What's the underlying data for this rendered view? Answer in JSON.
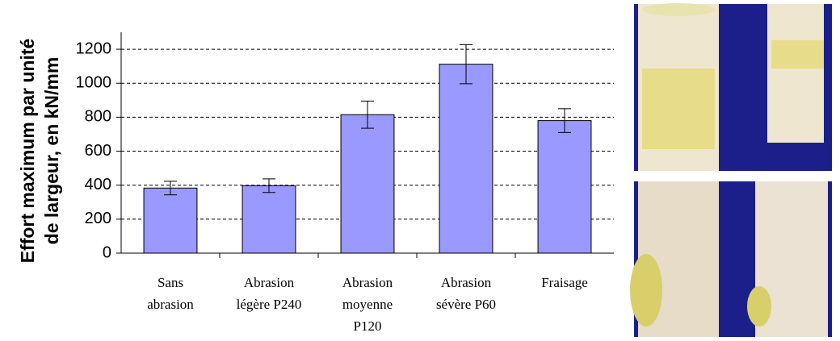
{
  "chart_data": {
    "type": "bar",
    "y_label": [
      "Effort maximum par unité",
      "de largeur, en kN/mm"
    ],
    "categories": [
      [
        "Sans",
        "abrasion"
      ],
      [
        "Abrasion",
        "légère P240"
      ],
      [
        "Abrasion",
        "moyenne",
        "P120"
      ],
      [
        "Abrasion",
        "sévère P60"
      ],
      [
        "Fraisage"
      ]
    ],
    "values": [
      383,
      397,
      815,
      1112,
      780
    ],
    "errors": [
      40,
      40,
      80,
      115,
      70
    ],
    "color": "#9999ff",
    "ylim": [
      0,
      1300
    ],
    "yticks": [
      0,
      200,
      400,
      600,
      800,
      1000,
      1200
    ],
    "grid": true
  }
}
